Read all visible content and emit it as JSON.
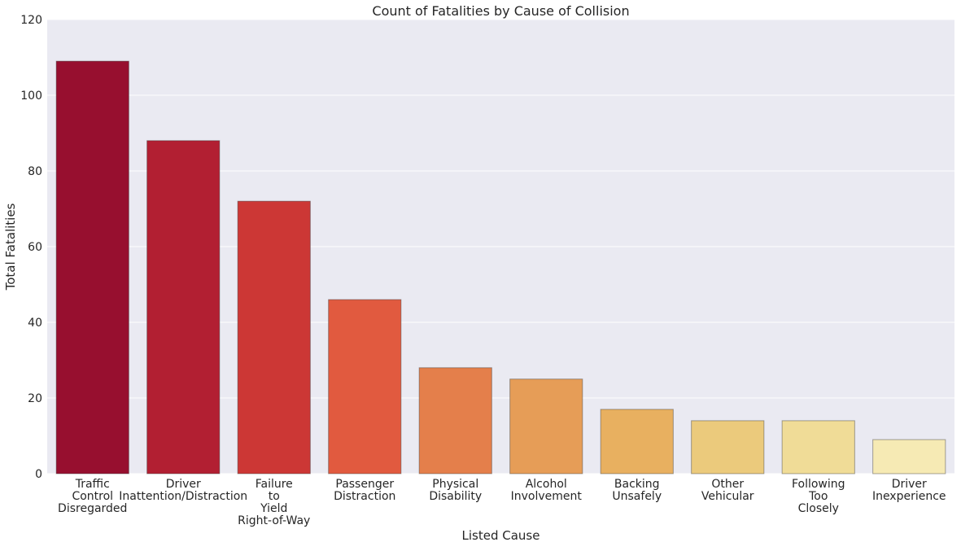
{
  "chart_data": {
    "type": "bar",
    "title": "Count of Fatalities by Cause of Collision",
    "xlabel": "Listed Cause",
    "ylabel": "Total Fatalities",
    "ylim": [
      0,
      120
    ],
    "yticks": [
      0,
      20,
      40,
      60,
      80,
      100,
      120
    ],
    "grid": true,
    "categories": [
      "Traffic Control Disregarded",
      "Driver Inattention/Distraction",
      "Failure to Yield Right-of-Way",
      "Passenger Distraction",
      "Physical Disability",
      "Alcohol Involvement",
      "Backing Unsafely",
      "Other Vehicular",
      "Following Too Closely",
      "Driver Inexperience"
    ],
    "category_lines": [
      [
        "Traffic",
        "Control",
        "Disregarded"
      ],
      [
        "Driver",
        "Inattention/Distraction"
      ],
      [
        "Failure",
        "to",
        "Yield",
        "Right-of-Way"
      ],
      [
        "Passenger",
        "Distraction"
      ],
      [
        "Physical",
        "Disability"
      ],
      [
        "Alcohol",
        "Involvement"
      ],
      [
        "Backing",
        "Unsafely"
      ],
      [
        "Other",
        "Vehicular"
      ],
      [
        "Following",
        "Too",
        "Closely"
      ],
      [
        "Driver",
        "Inexperience"
      ]
    ],
    "values": [
      109,
      88,
      72,
      46,
      28,
      25,
      17,
      14,
      14,
      9
    ],
    "colors": [
      "#970f2f",
      "#b21f32",
      "#cc3735",
      "#e15a3f",
      "#e47f4b",
      "#e69d57",
      "#e8b060",
      "#ebca7c",
      "#f0dc97",
      "#f6eab4"
    ],
    "plot_background": "#eaeaf2",
    "grid_color": "#ffffff"
  }
}
